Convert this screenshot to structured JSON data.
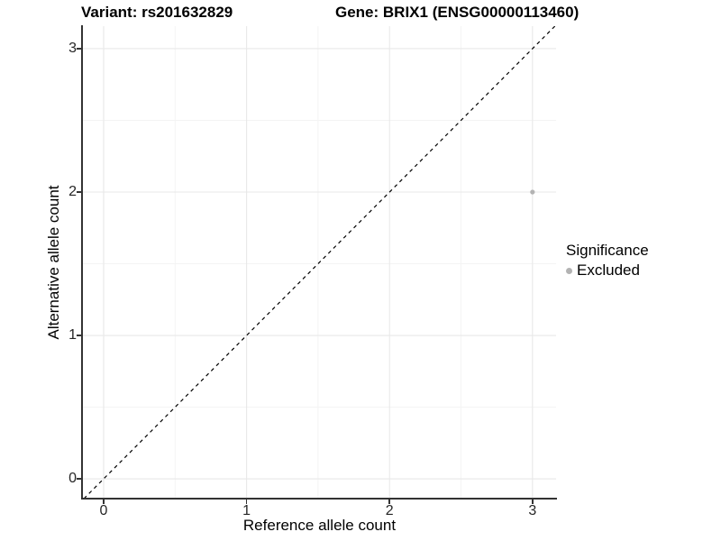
{
  "title": {
    "variant": "Variant: rs201632829",
    "gene": "Gene: BRIX1 (ENSG00000113460)"
  },
  "chart_data": {
    "type": "scatter",
    "xlabel": "Reference allele count",
    "ylabel": "Alternative allele count",
    "xlim": [
      -0.145,
      3.165
    ],
    "ylim": [
      -0.138,
      3.157
    ],
    "x_ticks": [
      0,
      1,
      2,
      3
    ],
    "y_ticks": [
      0,
      1,
      2,
      3
    ],
    "x_minor_ticks": [
      0.5,
      1.5,
      2.5
    ],
    "y_minor_ticks": [
      0.5,
      1.5,
      2.5
    ],
    "grid": "major and minor gridlines on white background",
    "points": [
      {
        "x": 3,
        "y": 2,
        "significance": "Excluded",
        "color": "#b3b3b3",
        "size": 2.6
      }
    ],
    "reference_line": {
      "type": "identity",
      "equation": "y = x",
      "style": "dashed",
      "color": "#000000"
    },
    "legend": {
      "title": "Significance",
      "position": "right-middle",
      "entries": [
        {
          "label": "Excluded",
          "marker": "circle",
          "color": "#b3b3b3"
        }
      ]
    }
  },
  "colors": {
    "background": "#ffffff",
    "grid_major": "#e8e8e8",
    "grid_minor": "#f4f4f4",
    "axis_line": "#333333",
    "tick_label": "#262626",
    "title_text": "#000000"
  }
}
